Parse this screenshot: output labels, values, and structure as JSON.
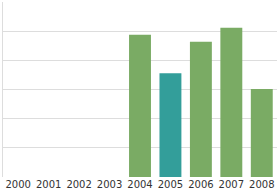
{
  "chart_data": {
    "type": "bar",
    "categories": [
      "2000",
      "2001",
      "2002",
      "2003",
      "2004",
      "2005",
      "2006",
      "2007",
      "2008"
    ],
    "values": [
      null,
      null,
      null,
      null,
      4.88,
      3.56,
      4.64,
      5.12,
      3.02
    ],
    "colors": [
      "#7aab64",
      "#7aab64",
      "#7aab64",
      "#7aab64",
      "#7aab64",
      "#339e9a",
      "#7aab64",
      "#7aab64",
      "#7aab64"
    ],
    "ylim": [
      0,
      6
    ],
    "yticks": [
      0,
      1,
      2,
      3,
      4,
      5,
      6
    ],
    "grid": true,
    "tick_labels": "x"
  }
}
